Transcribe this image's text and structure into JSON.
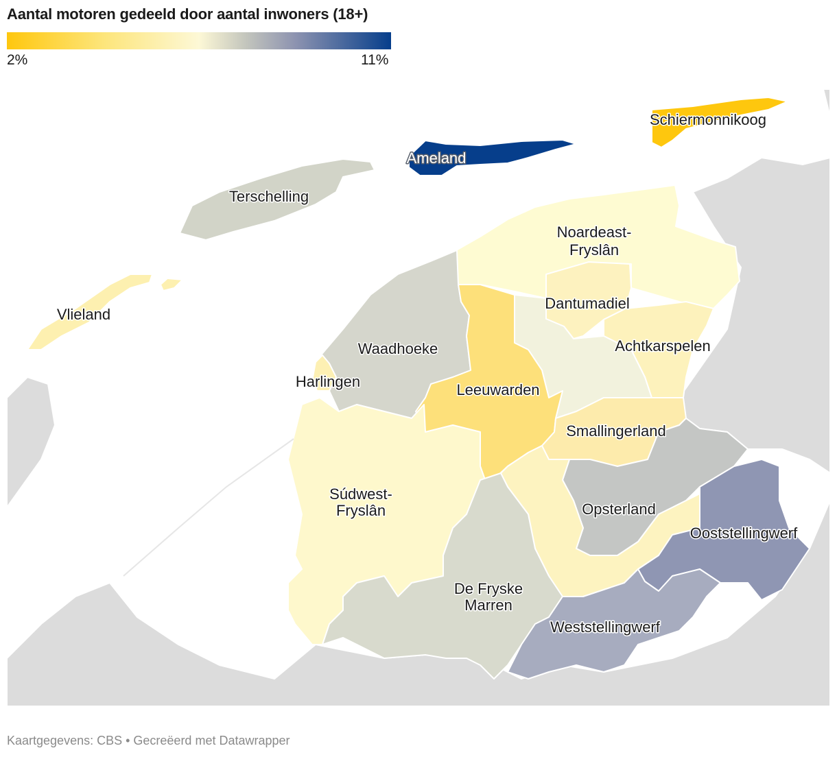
{
  "title": "Aantal motoren gedeeld door aantal inwoners (18+)",
  "legend": {
    "min_label": "2%",
    "max_label": "11%",
    "colors": [
      "#fec70e",
      "#fde57a",
      "#fdf8d6",
      "#c4c6bd",
      "#8d93b0",
      "#063e8b"
    ]
  },
  "map": {
    "background_land_color": "#dcdcdc",
    "border_color": "#ffffff",
    "municipalities": [
      {
        "id": "schiermonnikoog",
        "label": "Schiermonnikoog",
        "color": "#fec70e"
      },
      {
        "id": "ameland",
        "label": "Ameland",
        "color": "#063e8b"
      },
      {
        "id": "terschelling",
        "label": "Terschelling",
        "color": "#d2d4c8"
      },
      {
        "id": "vlieland",
        "label": "Vlieland",
        "color": "#fdf0b0"
      },
      {
        "id": "noardeast",
        "label": "Noardeast-\nFryslân",
        "color": "#fefbd2"
      },
      {
        "id": "dantumadiel",
        "label": "Dantumadiel",
        "color": "#fdf2bf"
      },
      {
        "id": "achtkarspelen",
        "label": "Achtkarspelen",
        "color": "#fdf2bc"
      },
      {
        "id": "waadhoeke",
        "label": "Waadhoeke",
        "color": "#d5d6cc"
      },
      {
        "id": "harlingen",
        "label": "Harlingen",
        "color": "#fdf0b3"
      },
      {
        "id": "leeuwarden",
        "label": "Leeuwarden",
        "color": "#fde07a"
      },
      {
        "id": "tytsjerksteradiel",
        "label": "",
        "color": "#f2f2dd"
      },
      {
        "id": "smallingerland",
        "label": "Smallingerland",
        "color": "#fdebac"
      },
      {
        "id": "opsterland",
        "label": "Opsterland",
        "color": "#c4c6c4"
      },
      {
        "id": "heerenveen",
        "label": "",
        "color": "#fdf3c0"
      },
      {
        "id": "ooststellingwerf",
        "label": "Ooststellingwerf",
        "color": "#8f96b3"
      },
      {
        "id": "sudwest",
        "label": "Súdwest-\nFryslân",
        "color": "#fef8cc"
      },
      {
        "id": "defryske",
        "label": "De Fryske\nMarren",
        "color": "#d8dacd"
      },
      {
        "id": "weststellingwerf",
        "label": "Weststellingwerf",
        "color": "#a7acbf"
      }
    ]
  },
  "footer": "Kaartgegevens: CBS • Gecreëerd met Datawrapper"
}
